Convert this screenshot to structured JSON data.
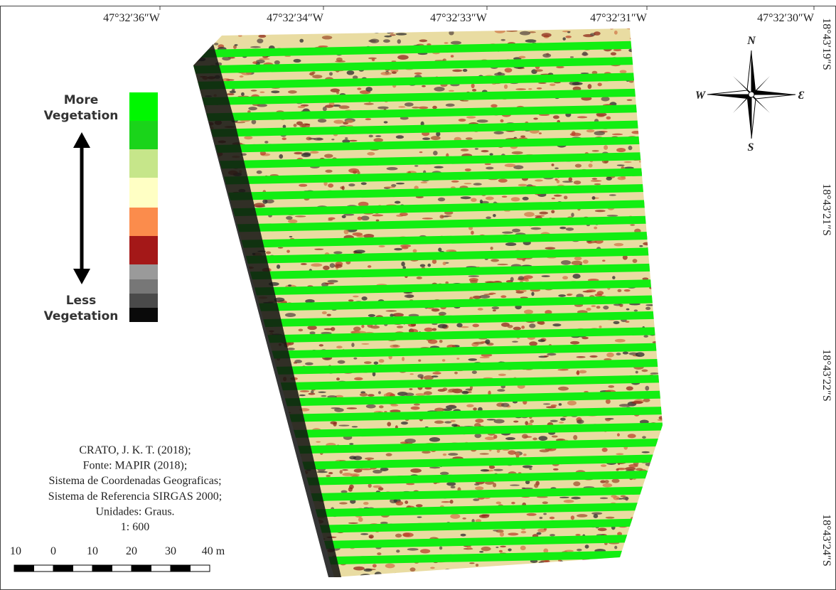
{
  "map": {
    "longitude_labels": [
      "47°32′36″W",
      "47°32′34″W",
      "47°32′33″W",
      "47°32′31″W",
      "47°32′30″W"
    ],
    "latitude_labels": [
      "18°43′19″S",
      "18°43′21″S",
      "18°43′22″S",
      "18°43′24″S"
    ],
    "legend": {
      "top_label": [
        "More",
        "Vegetation"
      ],
      "bottom_label": [
        "Less",
        "Vegetation"
      ],
      "colors": [
        "#00f700",
        "#1ad41a",
        "#c6e68a",
        "#ffffc4",
        "#fb8c4c",
        "#a41818",
        "#9a9a9a",
        "#777777",
        "#4a4a4a",
        "#0a0a0a"
      ]
    },
    "compass": {
      "north": "N",
      "south": "S",
      "west": "W",
      "east": "Ɛ"
    },
    "credits": [
      "CRATO, J. K. T. (2018);",
      "Fonte: MAPIR (2018);",
      "Sistema de Coordenadas Geograficas;",
      "Sistema de Referencia SIRGAS 2000;",
      "Unidades: Graus.",
      "1: 600"
    ],
    "scale_bar": {
      "labels": [
        "10",
        "0",
        "10",
        "20",
        "30",
        "40 m"
      ]
    }
  }
}
